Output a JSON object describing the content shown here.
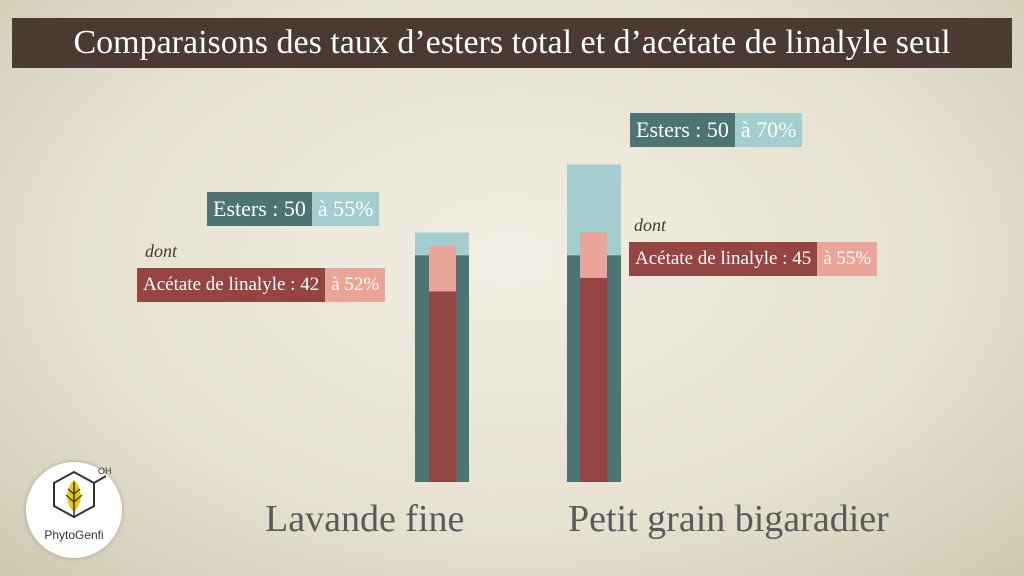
{
  "title": "Comparaisons des taux d’esters total et d’acétate de linalyle seul",
  "labels": {
    "dont": "dont"
  },
  "logo": {
    "text": "PhytoGenfi",
    "oh": "OH"
  },
  "colors": {
    "esters_dark": "#4d7473",
    "esters_light": "#a3cdcf",
    "acetate_dark": "#944442",
    "acetate_light": "#e9a599",
    "title_bg": "#4a3a31"
  },
  "chart_data": {
    "type": "bar",
    "title": "Comparaisons des taux d’esters total et d’acétate de linalyle seul",
    "categories": [
      "Lavande fine",
      "Petit grain bigaradier"
    ],
    "series": [
      {
        "name": "Esters",
        "min": [
          50,
          50
        ],
        "max": [
          55,
          70
        ]
      },
      {
        "name": "Acétate de linalyle",
        "min": [
          42,
          45
        ],
        "max": [
          52,
          55
        ]
      }
    ],
    "annotations": [
      {
        "category": "Lavande fine",
        "esters_label": "Esters : 50",
        "esters_range": "à 55%",
        "acetate_label": "Acétate de linalyle : 42",
        "acetate_range": "à 52%"
      },
      {
        "category": "Petit grain bigaradier",
        "esters_label": "Esters : 50",
        "esters_range": "à 70%",
        "acetate_label": "Acétate de linalyle : 45",
        "acetate_range": "à 55%"
      }
    ],
    "ylim": [
      0,
      82
    ],
    "grid": false,
    "legend": "none"
  }
}
